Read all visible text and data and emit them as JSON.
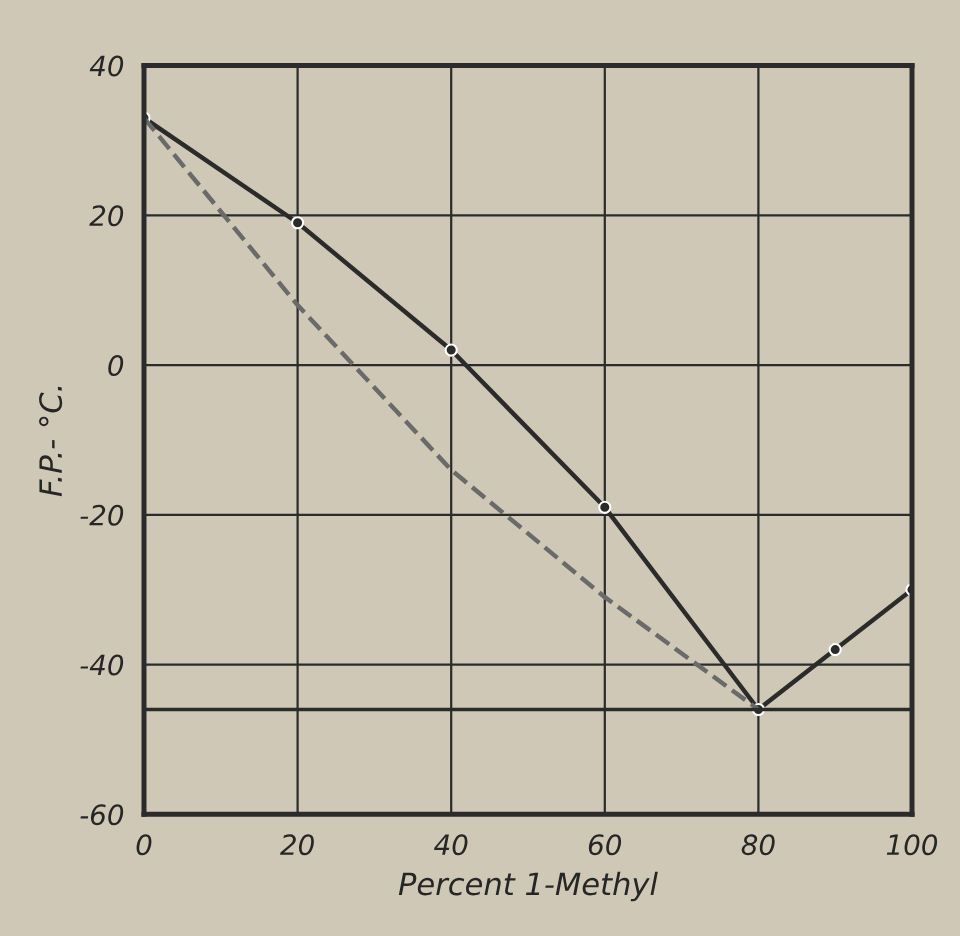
{
  "chart_data": {
    "type": "line",
    "xlabel": "Percent 1-Methyl",
    "ylabel": "F.P.- °C.",
    "x": [
      0,
      20,
      40,
      60,
      80,
      90,
      100
    ],
    "series": [
      {
        "color": "#2b2b2b",
        "values": [
          33,
          19,
          2,
          -19,
          -46,
          -38,
          -30
        ],
        "marker": "circle",
        "line_style": "solid"
      },
      {
        "color": "#6a6a6a",
        "x": [
          0,
          20,
          40,
          60,
          80
        ],
        "values": [
          33,
          8,
          -14,
          -31,
          -46
        ],
        "marker": "none",
        "line_style": "dashed"
      }
    ],
    "ref_lines": [
      {
        "axis": "y",
        "value": -46,
        "color": "#2b2b2b"
      }
    ],
    "xlim": [
      0,
      100
    ],
    "xticks": [
      0,
      20,
      40,
      60,
      80,
      100
    ],
    "ylim": [
      -60,
      40
    ],
    "yticks": [
      -60,
      -40,
      -20,
      0,
      20,
      40
    ],
    "grid": true,
    "legend": false
  }
}
